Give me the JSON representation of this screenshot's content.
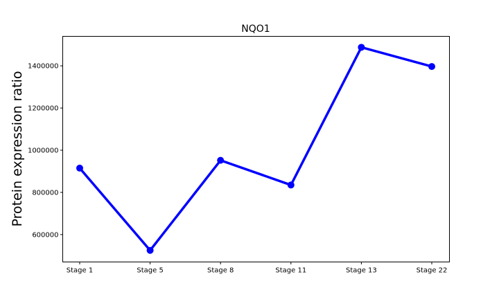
{
  "chart_data": {
    "type": "line",
    "title": "NQO1",
    "xlabel": "",
    "ylabel": "Protein expression ratio",
    "categories": [
      "Stage 1",
      "Stage 5",
      "Stage 8",
      "Stage 11",
      "Stage 13",
      "Stage 22"
    ],
    "series": [
      {
        "values": [
          915000,
          525000,
          952000,
          835000,
          1488000,
          1397000
        ]
      }
    ],
    "yticks": [
      600000,
      800000,
      1000000,
      1200000,
      1400000
    ],
    "ytick_labels": [
      "600000",
      "800000",
      "1000000",
      "1200000",
      "1400000"
    ],
    "ylim": [
      470000,
      1540000
    ],
    "grid": false,
    "color": "#0000ff"
  }
}
